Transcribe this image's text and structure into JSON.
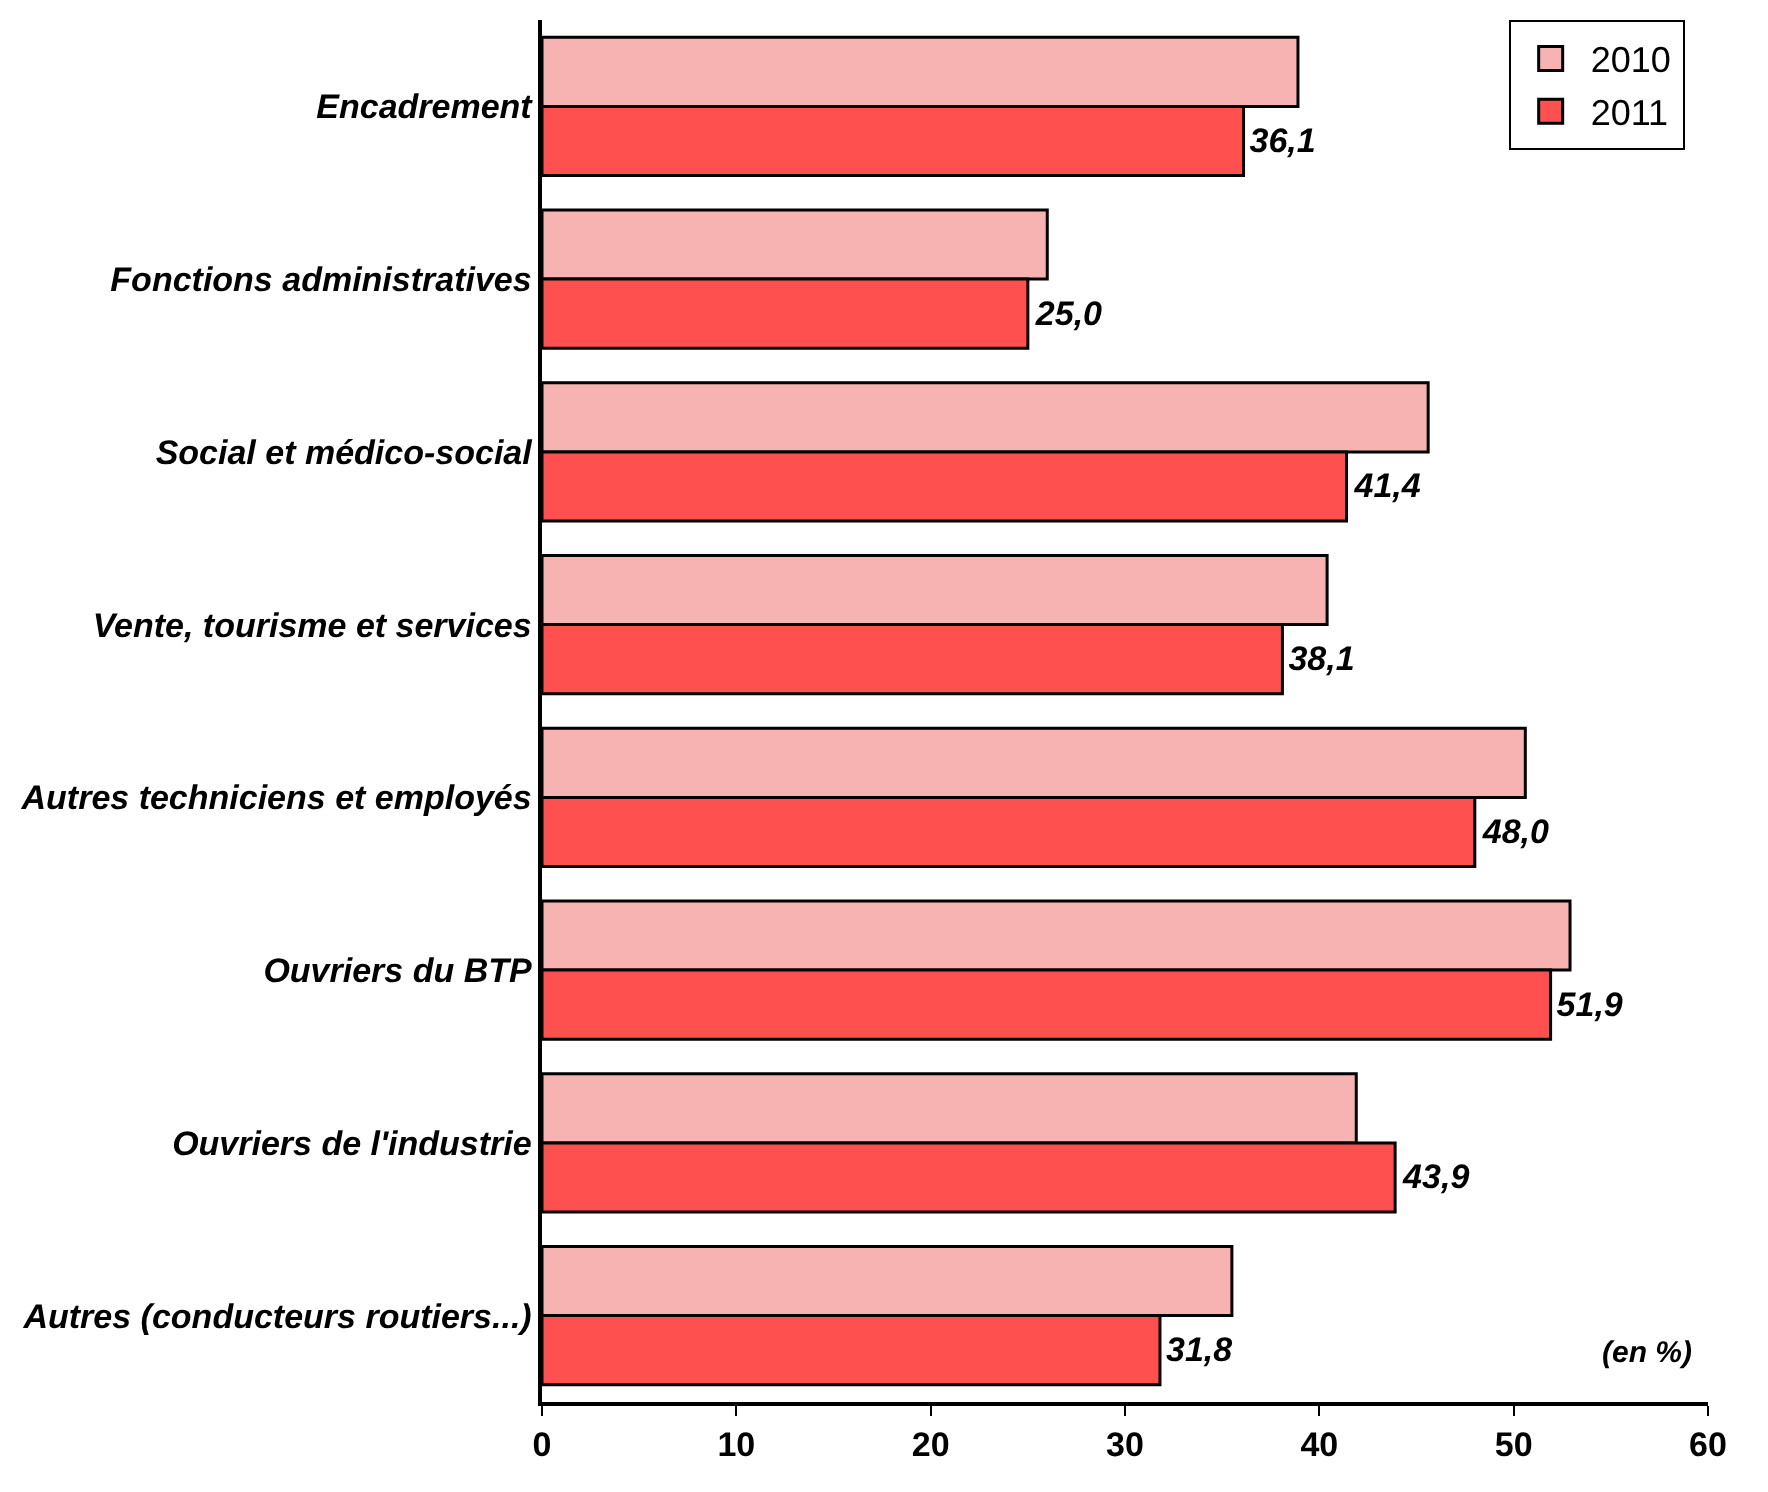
{
  "chart_data": {
    "type": "bar",
    "orientation": "horizontal",
    "categories": [
      "Encadrement",
      "Fonctions administratives",
      "Social et médico-social",
      "Vente, tourisme et services",
      "Autres techniciens et employés",
      "Ouvriers du BTP",
      "Ouvriers de l'industrie",
      "Autres (conducteurs routiers...)"
    ],
    "series": [
      {
        "name": "2010",
        "color": "#f7b2b2",
        "values": [
          38.9,
          26.0,
          45.6,
          40.4,
          50.6,
          52.9,
          41.9,
          35.5
        ]
      },
      {
        "name": "2011",
        "color": "#ff5050",
        "values": [
          36.1,
          25.0,
          41.4,
          38.1,
          48.0,
          51.9,
          43.9,
          31.8
        ],
        "value_labels": [
          "36,1",
          "25,0",
          "41,4",
          "38,1",
          "48,0",
          "51,9",
          "43,9",
          "31,8"
        ]
      }
    ],
    "xlim": [
      0,
      60
    ],
    "xticks": [
      0,
      10,
      20,
      30,
      40,
      50,
      60
    ],
    "legend": "top right",
    "annotations": [
      "(en %)"
    ]
  }
}
